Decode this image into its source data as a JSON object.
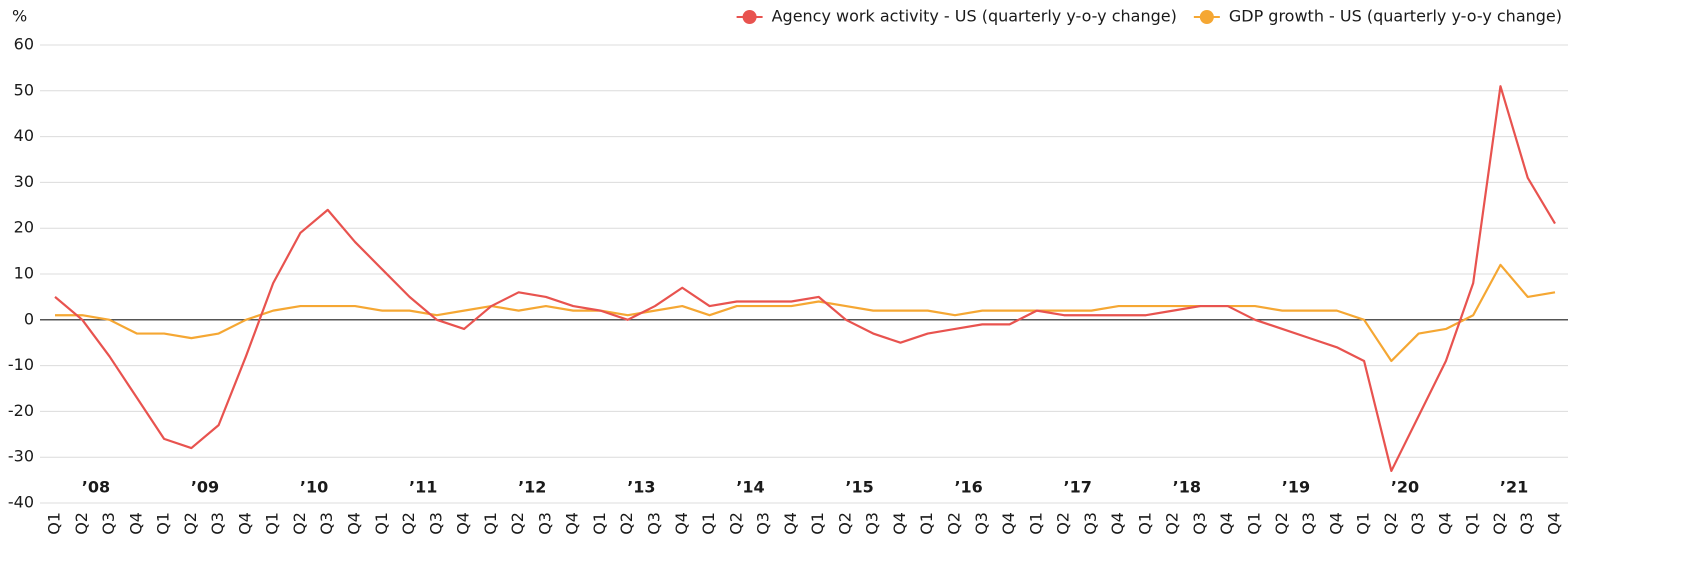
{
  "chart_data": {
    "type": "line",
    "y_label": "%",
    "categories": [
      "Q1",
      "Q2",
      "Q3",
      "Q4",
      "Q1",
      "Q2",
      "Q3",
      "Q4",
      "Q1",
      "Q2",
      "Q3",
      "Q4",
      "Q1",
      "Q2",
      "Q3",
      "Q4",
      "Q1",
      "Q2",
      "Q3",
      "Q4",
      "Q1",
      "Q2",
      "Q3",
      "Q4",
      "Q1",
      "Q2",
      "Q3",
      "Q4",
      "Q1",
      "Q2",
      "Q3",
      "Q4",
      "Q1",
      "Q2",
      "Q3",
      "Q4",
      "Q1",
      "Q2",
      "Q3",
      "Q4",
      "Q1",
      "Q2",
      "Q3",
      "Q4",
      "Q1",
      "Q2",
      "Q3",
      "Q4",
      "Q1",
      "Q2",
      "Q3",
      "Q4",
      "Q1",
      "Q2",
      "Q3",
      "Q4"
    ],
    "year_labels": [
      "’08",
      "’09",
      "’10",
      "’11",
      "’12",
      "’13",
      "’14",
      "’15",
      "’16",
      "’17",
      "’18",
      "’19",
      "’20",
      "’21"
    ],
    "series": [
      {
        "name": "Agency work activity - US (quarterly y-o-y change)",
        "color": "#e8534f",
        "values": [
          5,
          0,
          -8,
          -17,
          -26,
          -28,
          -23,
          -8,
          8,
          19,
          24,
          17,
          11,
          5,
          0,
          -2,
          3,
          6,
          5,
          3,
          2,
          0,
          3,
          7,
          3,
          4,
          4,
          4,
          5,
          0,
          -3,
          -5,
          -3,
          -2,
          -1,
          -1,
          2,
          1,
          1,
          1,
          1,
          2,
          3,
          3,
          0,
          -2,
          -4,
          -6,
          -9,
          -33,
          -21,
          -9,
          8,
          51,
          31,
          21
        ]
      },
      {
        "name": "GDP growth - US (quarterly y-o-y change)",
        "color": "#f5a733",
        "values": [
          1,
          1,
          0,
          -3,
          -3,
          -4,
          -3,
          0,
          2,
          3,
          3,
          3,
          2,
          2,
          1,
          2,
          3,
          2,
          3,
          2,
          2,
          1,
          2,
          3,
          1,
          3,
          3,
          3,
          4,
          3,
          2,
          2,
          2,
          1,
          2,
          2,
          2,
          2,
          2,
          3,
          3,
          3,
          3,
          3,
          3,
          2,
          2,
          2,
          0,
          -9,
          -3,
          -2,
          1,
          12,
          5,
          6
        ]
      }
    ],
    "ylim": [
      -40,
      60
    ],
    "yticks": [
      -40,
      -30,
      -20,
      -10,
      0,
      10,
      20,
      30,
      40,
      50,
      60
    ],
    "grid": true,
    "legend": "top-right"
  }
}
